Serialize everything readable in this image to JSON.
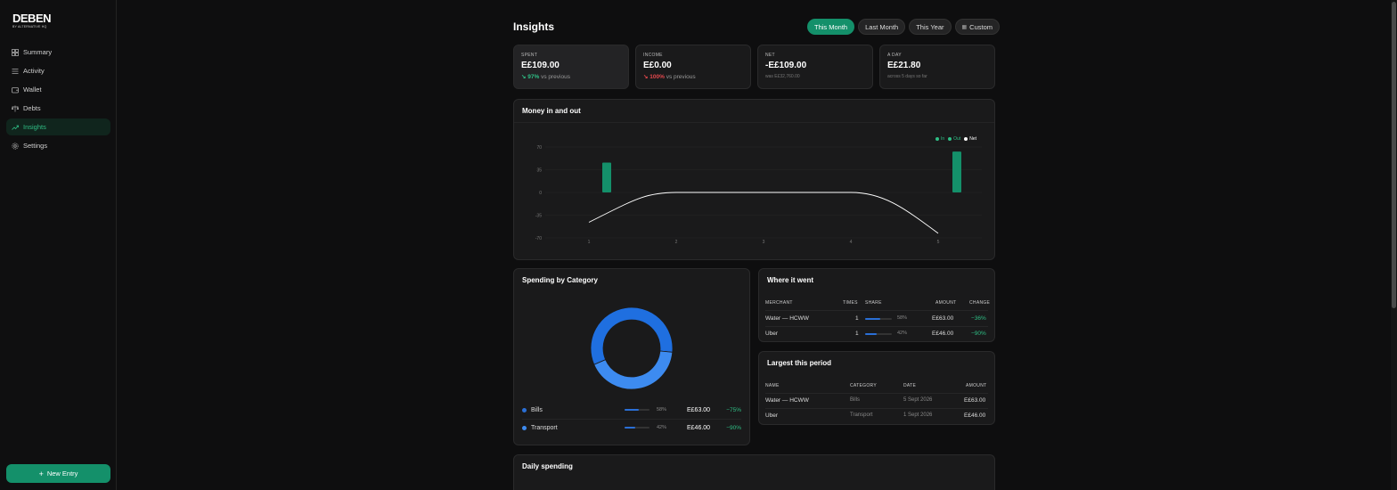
{
  "brand": {
    "name": "DEBEN",
    "tagline": "BY ALTERNATIVE HQ"
  },
  "nav": {
    "items": [
      {
        "label": "Summary",
        "icon": "grid-icon"
      },
      {
        "label": "Activity",
        "icon": "list-icon"
      },
      {
        "label": "Wallet",
        "icon": "wallet-icon"
      },
      {
        "label": "Debts",
        "icon": "scale-icon"
      },
      {
        "label": "Insights",
        "icon": "trend-icon",
        "active": true
      },
      {
        "label": "Settings",
        "icon": "gear-icon"
      }
    ],
    "new_entry_label": "New Entry"
  },
  "header": {
    "title": "Insights",
    "ranges": [
      "This Month",
      "Last Month",
      "This Year",
      "Custom"
    ],
    "active_range": "This Month"
  },
  "stats": {
    "spent": {
      "label": "SPENT",
      "value": "E£109.00",
      "delta": "97%",
      "delta_suffix": "vs previous"
    },
    "income": {
      "label": "INCOME",
      "value": "E£0.00",
      "delta": "100%",
      "delta_suffix": "vs previous"
    },
    "net": {
      "label": "NET",
      "value": "-E£109.00",
      "foot": "was E£32,760.00"
    },
    "per_day": {
      "label": "A DAY",
      "value": "E£21.80",
      "foot": "across 5 days so far"
    }
  },
  "money_chart": {
    "title": "Money in and out",
    "legend": [
      {
        "name": "In",
        "color": "#14906a"
      },
      {
        "name": "Out",
        "color": "#14906a"
      },
      {
        "name": "Net",
        "color": "#ffffff"
      }
    ]
  },
  "chart_data": {
    "type": "bar",
    "title": "Money in and out",
    "categories": [
      "1",
      "2",
      "3",
      "4",
      "5"
    ],
    "ylim": [
      -70,
      70
    ],
    "yticks": [
      70,
      35,
      0,
      -35,
      -70
    ],
    "series": [
      {
        "name": "Out",
        "type": "bar",
        "values": [
          46,
          0,
          0,
          0,
          63
        ]
      },
      {
        "name": "Net",
        "type": "line",
        "values": [
          -46,
          0,
          0,
          0,
          -63
        ]
      }
    ],
    "grid": true,
    "legend": "top-right"
  },
  "categories": {
    "title": "Spending by Category",
    "items": [
      {
        "name": "Bills",
        "share": 58,
        "share_label": "58%",
        "amount": "E£63.00",
        "change": "−75%",
        "color": "#1f6fe0"
      },
      {
        "name": "Transport",
        "share": 42,
        "share_label": "42%",
        "amount": "E£46.00",
        "change": "−90%",
        "color": "#3d8bf0"
      }
    ]
  },
  "merchants": {
    "title": "Where it went",
    "headers": {
      "merchant": "MERCHANT",
      "times": "TIMES",
      "share": "SHARE",
      "amount": "AMOUNT",
      "change": "CHANGE"
    },
    "rows": [
      {
        "merchant": "Water — HCWW",
        "times": "1",
        "share": 58,
        "share_label": "58%",
        "amount": "E£63.00",
        "change": "−36%"
      },
      {
        "merchant": "Uber",
        "times": "1",
        "share": 42,
        "share_label": "42%",
        "amount": "E£46.00",
        "change": "−90%"
      }
    ]
  },
  "largest": {
    "title": "Largest this period",
    "headers": {
      "name": "NAME",
      "category": "CATEGORY",
      "date": "DATE",
      "amount": "AMOUNT"
    },
    "rows": [
      {
        "name": "Water — HCWW",
        "category": "Bills",
        "date": "5 Sept 2026",
        "amount": "E£63.00"
      },
      {
        "name": "Uber",
        "category": "Transport",
        "date": "1 Sept 2026",
        "amount": "E£46.00"
      }
    ]
  },
  "daily": {
    "title": "Daily spending"
  }
}
